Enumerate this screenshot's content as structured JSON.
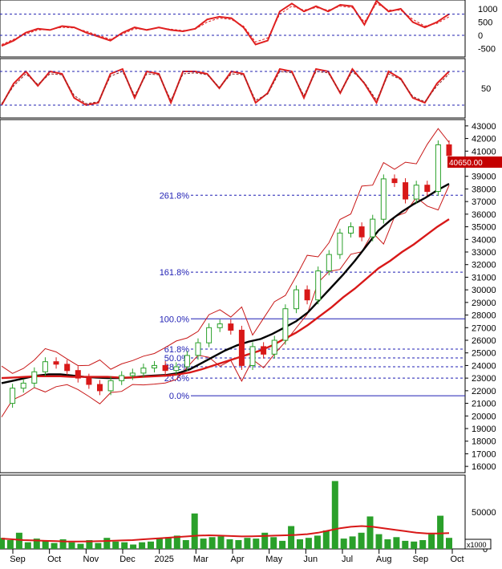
{
  "chart_data": [
    {
      "panel": "oscillator-top",
      "type": "line",
      "y_ticks": [
        "1000",
        "500",
        "0",
        "-500"
      ],
      "reference_lines": [
        0,
        800
      ],
      "series": [
        {
          "style": "solid",
          "color": "#e02020",
          "values": [
            -400,
            -200,
            100,
            250,
            200,
            350,
            300,
            100,
            -50,
            -200,
            100,
            300,
            200,
            300,
            200,
            150,
            250,
            600,
            700,
            650,
            300,
            -350,
            -200,
            900,
            1200,
            900,
            1100,
            900,
            1150,
            1100,
            400,
            1300,
            900,
            1000,
            500,
            300,
            500,
            800
          ]
        },
        {
          "style": "dashed",
          "color": "#e02020",
          "values": [
            -350,
            -150,
            50,
            200,
            220,
            300,
            280,
            150,
            0,
            -150,
            50,
            250,
            220,
            280,
            230,
            180,
            230,
            500,
            650,
            600,
            350,
            -250,
            -100,
            800,
            1100,
            950,
            1050,
            950,
            1100,
            1050,
            500,
            1200,
            950,
            950,
            600,
            350,
            450,
            700
          ]
        }
      ]
    },
    {
      "panel": "oscillator-middle",
      "type": "line",
      "y_ticks": [
        "50"
      ],
      "reference_lines": [
        85,
        15
      ],
      "series": [
        {
          "style": "solid",
          "color": "#e02020",
          "values": [
            15,
            60,
            85,
            55,
            85,
            80,
            30,
            15,
            20,
            80,
            90,
            30,
            85,
            80,
            20,
            85,
            85,
            80,
            50,
            85,
            80,
            20,
            40,
            90,
            85,
            30,
            90,
            85,
            40,
            90,
            60,
            20,
            85,
            70,
            30,
            20,
            60,
            85
          ]
        },
        {
          "style": "dashed",
          "color": "#8b2020",
          "values": [
            18,
            55,
            80,
            58,
            80,
            78,
            35,
            18,
            22,
            75,
            85,
            35,
            80,
            78,
            25,
            80,
            82,
            78,
            52,
            80,
            78,
            25,
            38,
            85,
            82,
            35,
            85,
            82,
            42,
            85,
            62,
            25,
            80,
            68,
            33,
            22,
            55,
            80
          ]
        }
      ]
    },
    {
      "panel": "price",
      "type": "line",
      "y_ticks": [
        "43000",
        "42000",
        "41000",
        "40000",
        "39000",
        "38000",
        "37000",
        "36000",
        "35000",
        "34000",
        "33000",
        "32000",
        "31000",
        "30000",
        "29000",
        "28000",
        "27000",
        "26000",
        "25000",
        "24000",
        "23000",
        "22000",
        "21000",
        "20000",
        "19000",
        "18000",
        "17000",
        "16000"
      ],
      "ylim": [
        15500,
        43500
      ],
      "last_price": "40650.00",
      "fibonacci_levels": [
        {
          "label": "261.8%",
          "price": 37500
        },
        {
          "label": "161.8%",
          "price": 31400
        },
        {
          "label": "100.0%",
          "price": 27700
        },
        {
          "label": "61.8%",
          "price": 25300
        },
        {
          "label": "50.0%",
          "price": 24600
        },
        {
          "label": "38.2%",
          "price": 23900
        },
        {
          "label": "23.6%",
          "price": 23000
        },
        {
          "label": "0.0%",
          "price": 21600
        }
      ],
      "series": [
        {
          "style": "solid",
          "color": "#000000",
          "values": [
            22600,
            22800,
            23000,
            23200,
            23300,
            23300,
            23200,
            23100,
            23050,
            23000,
            23000,
            23050,
            23150,
            23200,
            23250,
            23400,
            23700,
            24200,
            24700,
            25200,
            25600,
            25900,
            26100,
            26500,
            27000,
            27500,
            28200,
            29200,
            30200,
            31200,
            32300,
            33500,
            34700,
            35500,
            36200,
            36800,
            37300,
            37900,
            38400
          ]
        },
        {
          "style": "solid",
          "color": "#d81818",
          "values": [
            23000,
            23050,
            23100,
            23150,
            23150,
            23150,
            23100,
            23100,
            23100,
            23100,
            23050,
            23050,
            23100,
            23150,
            23200,
            23300,
            23450,
            23700,
            24000,
            24300,
            24600,
            24900,
            25200,
            25600,
            26100,
            26600,
            27200,
            27900,
            28600,
            29400,
            30100,
            30900,
            31700,
            32300,
            33000,
            33600,
            34300,
            35000,
            35600
          ]
        },
        {
          "style": "candles",
          "color": "#2aa02a",
          "values": [
            21000,
            22200,
            22600,
            23500,
            24300,
            24100,
            23600,
            23000,
            22500,
            22000,
            22800,
            23200,
            23400,
            23800,
            24000,
            23600,
            23900,
            24800,
            25800,
            27000,
            27300,
            26800,
            24000,
            25500,
            24900,
            26000,
            28500,
            30000,
            29200,
            31500,
            32800,
            34500,
            35000,
            34200,
            35600,
            38800,
            38500,
            37200,
            38300,
            37800,
            41500,
            40650
          ]
        }
      ]
    },
    {
      "panel": "volume",
      "type": "bar",
      "y_ticks": [
        "50000",
        "0"
      ],
      "unit_label": "x1000",
      "x_tick_labels": [
        "Sep",
        "Oct",
        "Nov",
        "Dec",
        "2025",
        "Mar",
        "Apr",
        "May",
        "Jun",
        "Jul",
        "Aug",
        "Sep",
        "Oct"
      ],
      "values": [
        15000,
        12000,
        22000,
        9000,
        14000,
        11000,
        8000,
        13000,
        9000,
        7000,
        12000,
        8000,
        15000,
        10000,
        9000,
        6000,
        9000,
        10000,
        14000,
        16000,
        18000,
        12000,
        48000,
        14000,
        16000,
        17000,
        13000,
        12000,
        15000,
        14000,
        22000,
        16000,
        11000,
        31000,
        13000,
        15000,
        18000,
        25000,
        92000,
        14000,
        17000,
        22000,
        44000,
        20000,
        13000,
        16000,
        11000,
        10000,
        12000,
        20000,
        45000,
        15000
      ],
      "series": [
        {
          "style": "bar",
          "color": "#2aa02a"
        },
        {
          "style": "line",
          "color": "#d81818",
          "values": [
            14000,
            13000,
            12000,
            11500,
            11000,
            10500,
            10000,
            10000,
            10200,
            10500,
            11000,
            11500,
            12000,
            13000,
            14000,
            15000,
            16000,
            17000,
            18000,
            18500,
            18000,
            17500,
            17000,
            17200,
            17500,
            18000,
            18500,
            19000,
            20000,
            22000,
            25000,
            28000,
            30000,
            31000,
            30000,
            28000,
            26000,
            24000,
            22000,
            21000,
            21000,
            21500
          ]
        }
      ]
    }
  ]
}
